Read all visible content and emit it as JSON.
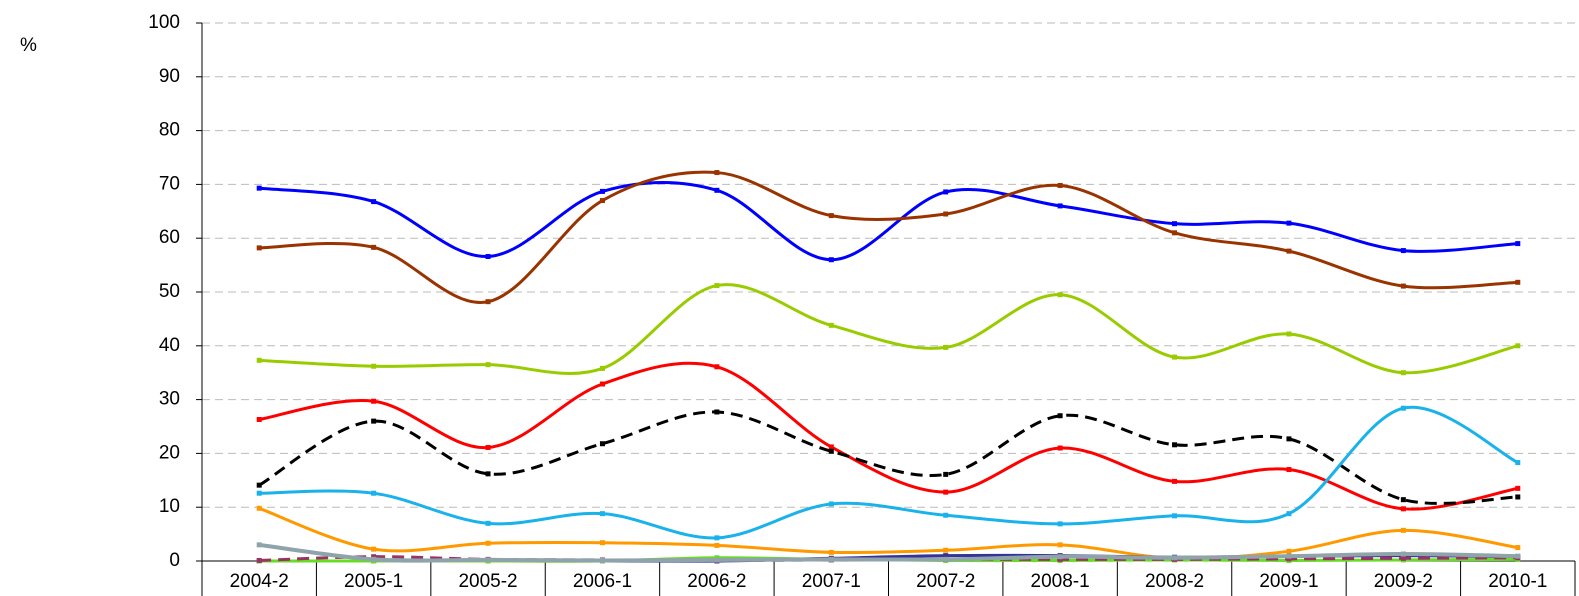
{
  "chart_data": {
    "type": "line",
    "y_label": "%",
    "categories": [
      "2004-2",
      "2005-1",
      "2005-2",
      "2006-1",
      "2006-2",
      "2007-1",
      "2007-2",
      "2008-1",
      "2008-2",
      "2009-1",
      "2009-2",
      "2010-1"
    ],
    "ylim": [
      0,
      100
    ],
    "yticks": [
      0,
      10,
      20,
      30,
      40,
      50,
      60,
      70,
      80,
      90,
      100
    ],
    "grid": true,
    "smooth": true,
    "series": [
      {
        "color": "#0000ff",
        "values": [
          69.3,
          66.8,
          56.6,
          68.7,
          68.9,
          56.0,
          68.6,
          66.0,
          62.7,
          62.8,
          57.7,
          59.0
        ]
      },
      {
        "color": "#993300",
        "values": [
          58.2,
          58.3,
          48.2,
          67.0,
          72.2,
          64.2,
          64.5,
          69.8,
          61.0,
          57.6,
          51.1,
          51.8
        ]
      },
      {
        "color": "#99cc00",
        "values": [
          37.3,
          36.2,
          36.5,
          35.8,
          51.2,
          43.8,
          39.7,
          49.5,
          37.9,
          42.2,
          35.0,
          40.0
        ]
      },
      {
        "color": "#ff0000",
        "values": [
          26.3,
          29.7,
          21.1,
          32.9,
          36.1,
          21.2,
          12.8,
          21.0,
          14.8,
          17.0,
          9.7,
          13.5
        ]
      },
      {
        "color": "#000000",
        "dashed": true,
        "values": [
          14.1,
          26.0,
          16.2,
          21.8,
          27.7,
          20.4,
          16.1,
          27.0,
          21.6,
          22.7,
          11.4,
          11.9
        ]
      },
      {
        "color": "#19b2ea",
        "values": [
          12.6,
          12.6,
          7.0,
          8.8,
          4.3,
          10.6,
          8.5,
          6.9,
          8.4,
          8.8,
          28.4,
          18.3
        ]
      },
      {
        "color": "#ff9900",
        "values": [
          9.8,
          2.2,
          3.3,
          3.4,
          2.9,
          1.6,
          2.0,
          3.0,
          0.5,
          1.8,
          5.7,
          2.5
        ]
      },
      {
        "color": "#333399",
        "values": [
          0,
          0,
          0,
          0,
          0,
          0.5,
          1.0,
          1.0,
          0.7,
          0.9,
          1.0,
          0.8
        ]
      },
      {
        "color": "#66dd22",
        "values": [
          0,
          0,
          0,
          0,
          0.6,
          0.3,
          0.1,
          0.1,
          0.2,
          0.1,
          0.2,
          0.3
        ]
      },
      {
        "color": "#993366",
        "dashed": true,
        "values": [
          0.1,
          0.8,
          0.3,
          0.2,
          0.1,
          0.2,
          0.3,
          0.3,
          0.3,
          0.4,
          0.5,
          0.6
        ]
      },
      {
        "color": "#8fa3ab",
        "width": 4,
        "values": [
          3.0,
          0.3,
          0.2,
          0.1,
          0.2,
          0.3,
          0.3,
          0.8,
          0.6,
          0.9,
          1.3,
          0.9
        ]
      }
    ]
  }
}
